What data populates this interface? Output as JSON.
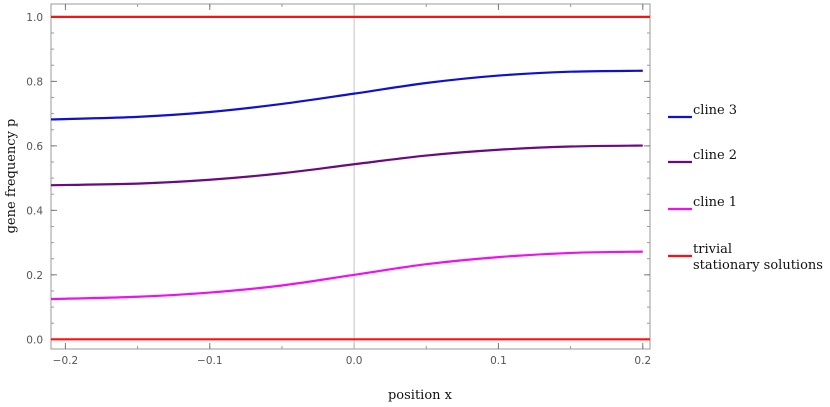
{
  "chart_data": {
    "type": "line",
    "xlabel": "position x",
    "ylabel": "gene frequency p",
    "xlim": [
      -0.21,
      0.205
    ],
    "ylim": [
      -0.03,
      1.04
    ],
    "xticks": [
      {
        "value": -0.2,
        "label": "−0.2"
      },
      {
        "value": -0.1,
        "label": "−0.1"
      },
      {
        "value": 0.0,
        "label": "0.0"
      },
      {
        "value": 0.1,
        "label": "0.1"
      },
      {
        "value": 0.2,
        "label": "0.2"
      }
    ],
    "yticks": [
      {
        "value": 0.0,
        "label": "0.0"
      },
      {
        "value": 0.2,
        "label": "0.2"
      },
      {
        "value": 0.4,
        "label": "0.4"
      },
      {
        "value": 0.6,
        "label": "0.6"
      },
      {
        "value": 0.8,
        "label": "0.8"
      },
      {
        "value": 1.0,
        "label": "1.0"
      }
    ],
    "reference_line_x": 0.0,
    "grid": false,
    "legend_position": "right",
    "series": [
      {
        "name": "cline 3",
        "color": "#1010d0",
        "x": [
          -0.21,
          -0.15,
          -0.1,
          -0.05,
          0.0,
          0.05,
          0.1,
          0.15,
          0.2
        ],
        "y": [
          0.682,
          0.69,
          0.705,
          0.73,
          0.762,
          0.795,
          0.818,
          0.83,
          0.833
        ]
      },
      {
        "name": "cline 2",
        "color": "#6a0a80",
        "x": [
          -0.21,
          -0.15,
          -0.1,
          -0.05,
          0.0,
          0.05,
          0.1,
          0.15,
          0.2
        ],
        "y": [
          0.478,
          0.483,
          0.495,
          0.515,
          0.543,
          0.57,
          0.588,
          0.598,
          0.601
        ]
      },
      {
        "name": "cline 1",
        "color": "#ee10ee",
        "x": [
          -0.21,
          -0.15,
          -0.1,
          -0.05,
          0.0,
          0.05,
          0.1,
          0.15,
          0.2
        ],
        "y": [
          0.125,
          0.132,
          0.145,
          0.167,
          0.2,
          0.233,
          0.255,
          0.268,
          0.272
        ]
      },
      {
        "name": "trivial stationary solutions",
        "color": "#ff1010",
        "label_lines": [
          "trivial",
          "stationary solutions"
        ],
        "x": [
          -0.21,
          0.205
        ],
        "y": [
          1.0,
          1.0
        ],
        "y2": [
          0.0,
          0.0
        ]
      }
    ]
  }
}
